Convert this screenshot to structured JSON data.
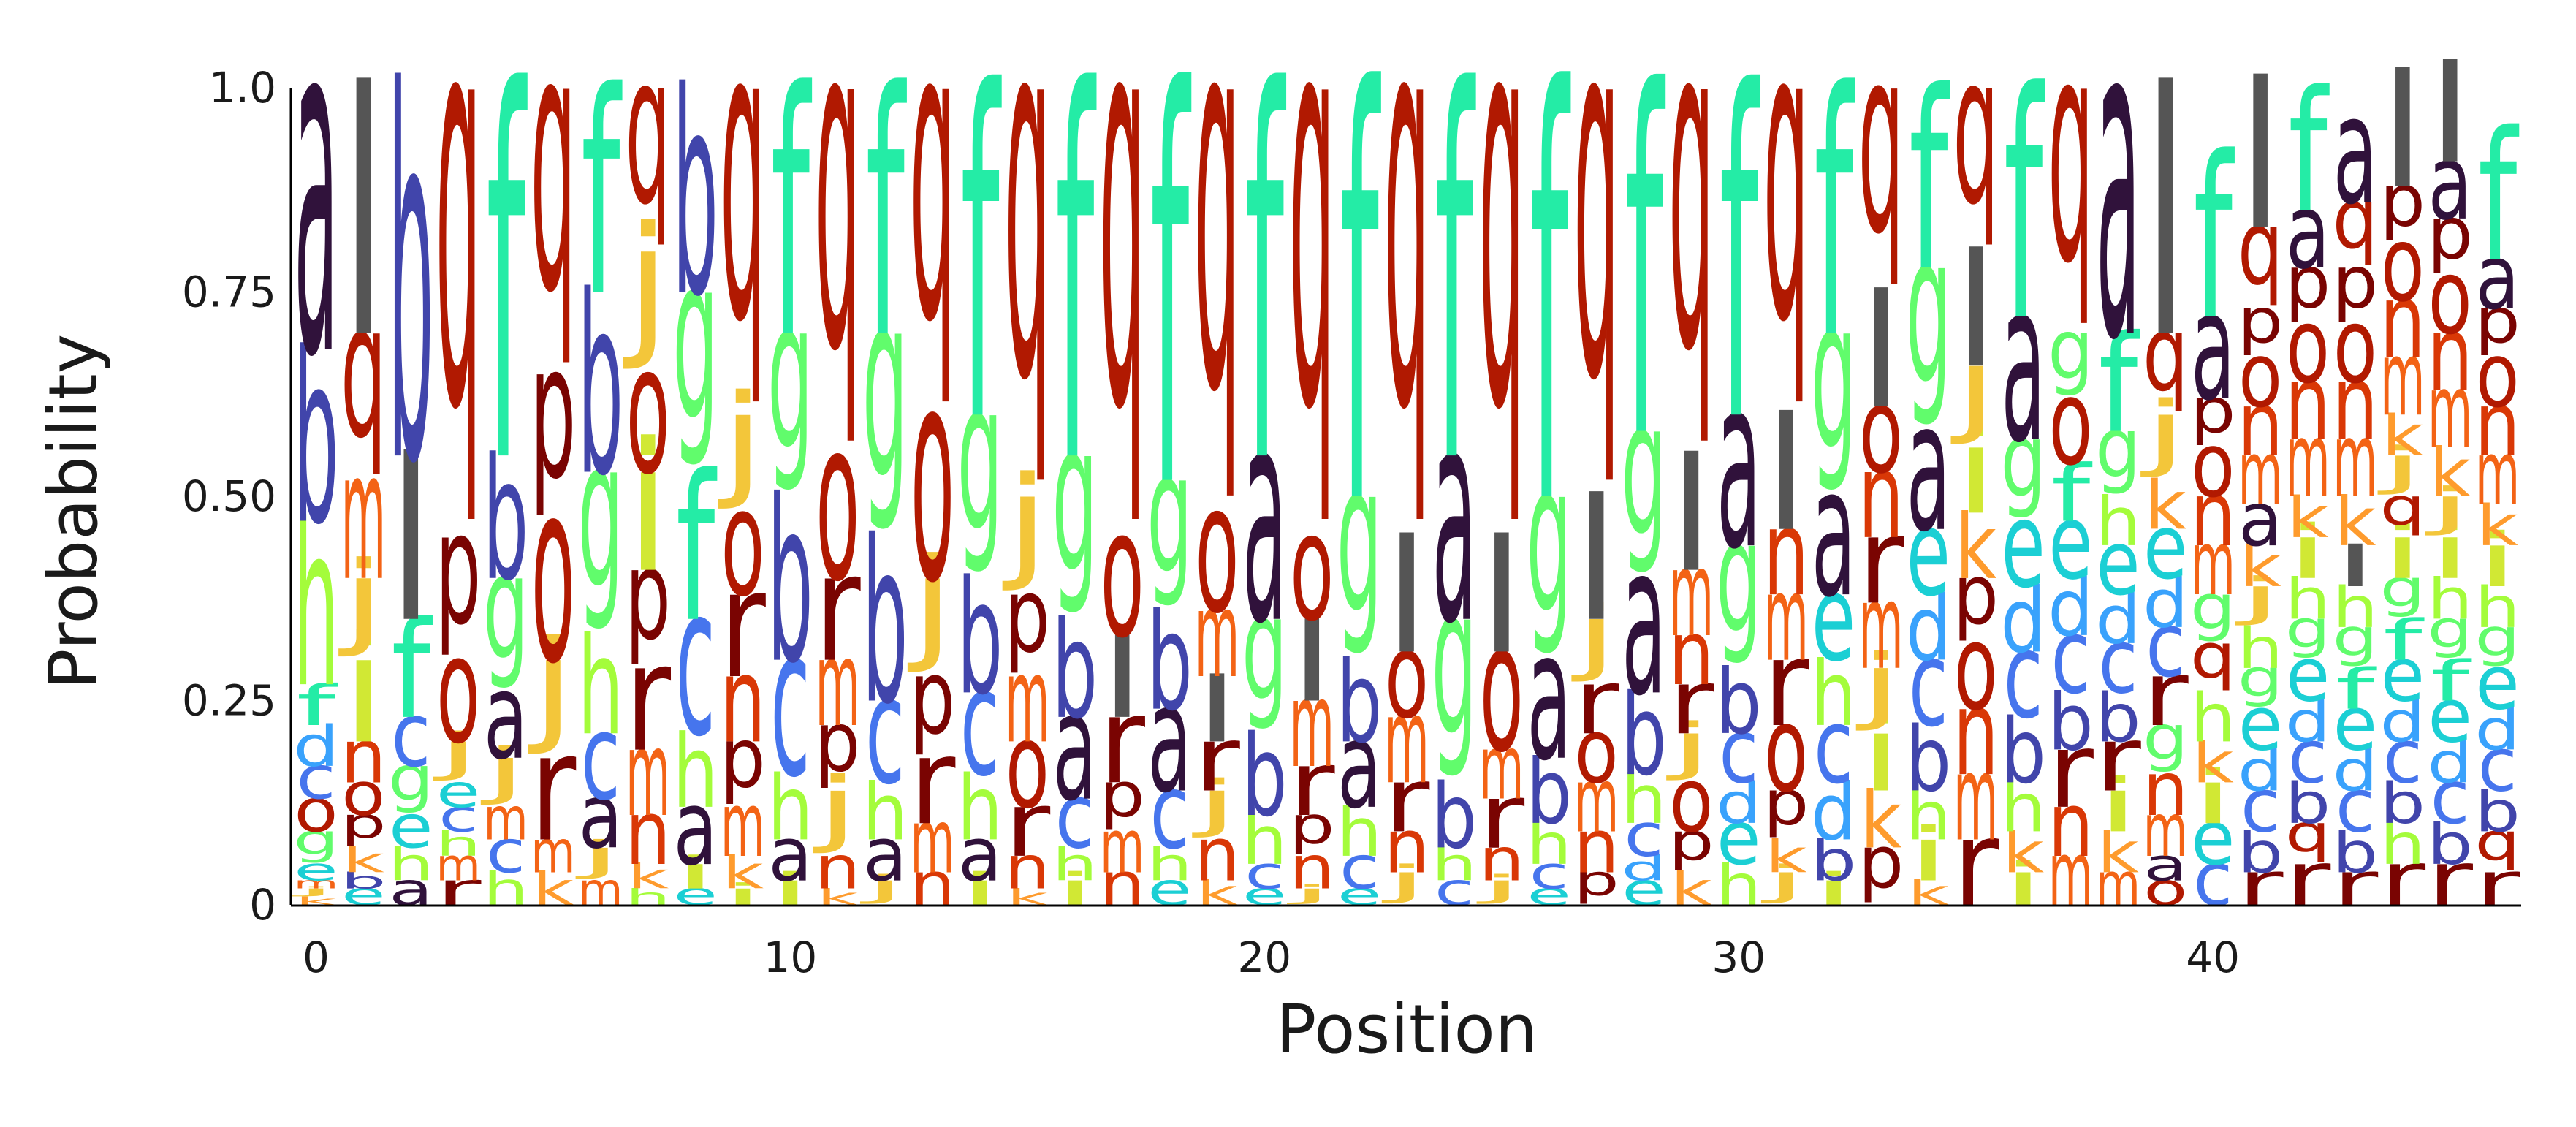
{
  "chart_data": {
    "type": "sequence_logo",
    "xlabel": "Position",
    "ylabel": "Probability",
    "xlim": [
      -0.5,
      46.5
    ],
    "ylim": [
      0,
      1
    ],
    "xticks": [
      0,
      10,
      20,
      30,
      40
    ],
    "yticks": [
      {
        "value": 0,
        "label": "0"
      },
      {
        "value": 0.25,
        "label": "0.25"
      },
      {
        "value": 0.5,
        "label": "0.50"
      },
      {
        "value": 0.75,
        "label": "0.75"
      },
      {
        "value": 1.0,
        "label": "1.0"
      }
    ],
    "colors": {
      "a": "#30123b",
      "b": "#4145ab",
      "c": "#4675ed",
      "d": "#39a2fc",
      "e": "#1bcfd4",
      "f": "#24eca6",
      "g": "#61fc6c",
      "h": "#a4fc3b",
      "i": "#d1e834",
      "j": "#f3c63a",
      "k": "#fe9b2d",
      "m": "#f36315",
      "n": "#d93806",
      "o": "#b11901",
      "p": "#7a0402",
      "q": "#b11901",
      "r": "#7a0402"
    },
    "positions": [
      {
        "pos": 0,
        "letters": {
          "a": 0.32,
          "h": 0.2,
          "b": 0.21,
          "d": 0.05,
          "f": 0.05,
          "g": 0.04,
          "o": 0.04,
          "c": 0.04,
          "e": 0.02,
          "k": 0.01,
          "j": 0.01,
          "m": 0.01
        }
      },
      {
        "pos": 1,
        "letters": {
          "q": 0.18,
          "i": 0.1,
          "l": 0.3,
          "m": 0.12,
          "j": 0.1,
          "n": 0.05,
          "p": 0.04,
          "o": 0.04,
          "k": 0.03,
          "e": 0.02,
          "b": 0.02
        }
      },
      {
        "pos": 2,
        "letters": {
          "b": 0.45,
          "l": 0.2,
          "f": 0.12,
          "g": 0.06,
          "c": 0.06,
          "h": 0.04,
          "e": 0.04,
          "a": 0.03
        }
      },
      {
        "pos": 3,
        "letters": {
          "q": 0.55,
          "p": 0.15,
          "o": 0.1,
          "j": 0.05,
          "r": 0.03,
          "m": 0.03,
          "h": 0.03,
          "c": 0.03,
          "e": 0.03
        }
      },
      {
        "pos": 4,
        "letters": {
          "f": 0.45,
          "b": 0.15,
          "g": 0.14,
          "a": 0.08,
          "j": 0.06,
          "h": 0.04,
          "c": 0.04,
          "m": 0.04
        }
      },
      {
        "pos": 5,
        "letters": {
          "q": 0.35,
          "p": 0.18,
          "o": 0.17,
          "j": 0.12,
          "r": 0.1,
          "k": 0.04,
          "m": 0.04
        }
      },
      {
        "pos": 6,
        "letters": {
          "f": 0.25,
          "g": 0.2,
          "b": 0.22,
          "h": 0.12,
          "c": 0.08,
          "a": 0.06,
          "j": 0.04,
          "m": 0.03
        }
      },
      {
        "pos": 7,
        "letters": {
          "q": 0.2,
          "p": 0.12,
          "j": 0.15,
          "i": 0.12,
          "o": 0.12,
          "r": 0.1,
          "m": 0.08,
          "n": 0.06,
          "k": 0.03,
          "h": 0.02
        }
      },
      {
        "pos": 8,
        "letters": {
          "b": 0.25,
          "g": 0.22,
          "f": 0.18,
          "c": 0.14,
          "h": 0.09,
          "a": 0.07,
          "i": 0.03,
          "e": 0.02
        }
      },
      {
        "pos": 9,
        "letters": {
          "q": 0.4,
          "j": 0.12,
          "p": 0.08,
          "r": 0.1,
          "o": 0.1,
          "n": 0.08,
          "m": 0.06,
          "k": 0.04,
          "i": 0.02
        }
      },
      {
        "pos": 10,
        "letters": {
          "f": 0.3,
          "b": 0.2,
          "g": 0.2,
          "c": 0.14,
          "h": 0.08,
          "a": 0.05,
          "i": 0.03
        }
      },
      {
        "pos": 11,
        "letters": {
          "q": 0.45,
          "o": 0.15,
          "j": 0.08,
          "p": 0.08,
          "r": 0.1,
          "m": 0.08,
          "n": 0.04,
          "k": 0.02
        }
      },
      {
        "pos": 12,
        "letters": {
          "f": 0.3,
          "g": 0.25,
          "b": 0.2,
          "c": 0.1,
          "h": 0.07,
          "a": 0.05,
          "j": 0.03
        }
      },
      {
        "pos": 13,
        "letters": {
          "q": 0.4,
          "o": 0.2,
          "j": 0.12,
          "p": 0.1,
          "r": 0.08,
          "m": 0.06,
          "n": 0.04
        }
      },
      {
        "pos": 14,
        "letters": {
          "f": 0.4,
          "g": 0.2,
          "b": 0.14,
          "c": 0.1,
          "h": 0.08,
          "a": 0.05,
          "i": 0.03
        }
      },
      {
        "pos": 15,
        "letters": {
          "q": 0.5,
          "j": 0.12,
          "p": 0.1,
          "o": 0.08,
          "m": 0.08,
          "r": 0.06,
          "n": 0.04,
          "k": 0.02
        }
      },
      {
        "pos": 16,
        "letters": {
          "f": 0.45,
          "g": 0.2,
          "b": 0.12,
          "a": 0.1,
          "c": 0.06,
          "h": 0.04,
          "i": 0.03
        }
      },
      {
        "pos": 17,
        "letters": {
          "q": 0.55,
          "l": 0.1,
          "o": 0.12,
          "r": 0.08,
          "p": 0.06,
          "m": 0.05,
          "n": 0.04
        }
      },
      {
        "pos": 18,
        "letters": {
          "f": 0.48,
          "g": 0.16,
          "b": 0.12,
          "a": 0.1,
          "c": 0.07,
          "h": 0.04,
          "e": 0.03
        }
      },
      {
        "pos": 19,
        "letters": {
          "q": 0.52,
          "l": 0.08,
          "o": 0.12,
          "j": 0.06,
          "m": 0.08,
          "r": 0.06,
          "n": 0.05,
          "k": 0.03
        }
      },
      {
        "pos": 20,
        "letters": {
          "f": 0.45,
          "g": 0.14,
          "a": 0.2,
          "b": 0.1,
          "h": 0.06,
          "c": 0.03,
          "e": 0.02
        }
      },
      {
        "pos": 21,
        "letters": {
          "q": 0.55,
          "l": 0.1,
          "o": 0.1,
          "m": 0.08,
          "r": 0.06,
          "p": 0.05,
          "n": 0.04,
          "j": 0.02
        }
      },
      {
        "pos": 22,
        "letters": {
          "f": 0.5,
          "g": 0.2,
          "b": 0.1,
          "a": 0.08,
          "h": 0.06,
          "c": 0.04,
          "e": 0.02
        }
      },
      {
        "pos": 23,
        "letters": {
          "q": 0.55,
          "l": 0.14,
          "m": 0.08,
          "o": 0.08,
          "r": 0.06,
          "n": 0.05,
          "j": 0.04
        }
      },
      {
        "pos": 24,
        "letters": {
          "f": 0.45,
          "g": 0.2,
          "a": 0.2,
          "b": 0.08,
          "h": 0.04,
          "c": 0.03
        }
      },
      {
        "pos": 25,
        "letters": {
          "q": 0.55,
          "l": 0.14,
          "o": 0.12,
          "r": 0.06,
          "m": 0.06,
          "n": 0.04,
          "j": 0.03
        }
      },
      {
        "pos": 26,
        "letters": {
          "f": 0.5,
          "g": 0.2,
          "a": 0.12,
          "b": 0.08,
          "h": 0.05,
          "c": 0.03,
          "e": 0.02
        }
      },
      {
        "pos": 27,
        "letters": {
          "q": 0.5,
          "l": 0.15,
          "j": 0.08,
          "m": 0.06,
          "o": 0.06,
          "r": 0.06,
          "n": 0.05,
          "p": 0.04
        }
      },
      {
        "pos": 28,
        "letters": {
          "f": 0.42,
          "g": 0.18,
          "a": 0.14,
          "b": 0.1,
          "h": 0.06,
          "c": 0.04,
          "e": 0.03,
          "d": 0.03
        }
      },
      {
        "pos": 29,
        "letters": {
          "q": 0.45,
          "l": 0.14,
          "m": 0.08,
          "o": 0.06,
          "j": 0.06,
          "r": 0.06,
          "n": 0.06,
          "p": 0.05,
          "k": 0.04
        }
      },
      {
        "pos": 30,
        "letters": {
          "f": 0.4,
          "a": 0.16,
          "g": 0.15,
          "b": 0.08,
          "c": 0.06,
          "h": 0.05,
          "e": 0.05,
          "d": 0.05
        }
      },
      {
        "pos": 31,
        "letters": {
          "q": 0.4,
          "l": 0.14,
          "o": 0.08,
          "r": 0.08,
          "m": 0.08,
          "n": 0.08,
          "p": 0.06,
          "j": 0.04,
          "k": 0.04
        }
      },
      {
        "pos": 32,
        "letters": {
          "f": 0.3,
          "g": 0.2,
          "a": 0.12,
          "h": 0.08,
          "e": 0.08,
          "d": 0.07,
          "c": 0.07,
          "b": 0.05,
          "i": 0.03
        }
      },
      {
        "pos": 33,
        "letters": {
          "q": 0.25,
          "l": 0.14,
          "j": 0.08,
          "m": 0.08,
          "r": 0.08,
          "n": 0.08,
          "o": 0.08,
          "p": 0.07,
          "k": 0.07,
          "i": 0.07
        }
      },
      {
        "pos": 34,
        "letters": {
          "f": 0.22,
          "g": 0.2,
          "a": 0.12,
          "b": 0.08,
          "c": 0.08,
          "d": 0.08,
          "e": 0.08,
          "h": 0.06,
          "i": 0.05,
          "k": 0.03
        }
      },
      {
        "pos": 35,
        "letters": {
          "q": 0.2,
          "l": 0.14,
          "j": 0.1,
          "r": 0.08,
          "m": 0.08,
          "n": 0.08,
          "o": 0.08,
          "p": 0.08,
          "k": 0.08,
          "i": 0.08
        }
      },
      {
        "pos": 36,
        "letters": {
          "f": 0.28,
          "a": 0.15,
          "g": 0.1,
          "b": 0.08,
          "c": 0.08,
          "d": 0.08,
          "e": 0.08,
          "h": 0.06,
          "k": 0.05,
          "i": 0.04
        }
      },
      {
        "pos": 37,
        "letters": {
          "q": 0.3,
          "o": 0.08,
          "g": 0.08,
          "r": 0.07,
          "b": 0.07,
          "c": 0.07,
          "d": 0.07,
          "e": 0.07,
          "f": 0.07,
          "m": 0.06,
          "n": 0.06
        }
      },
      {
        "pos": 38,
        "letters": {
          "a": 0.3,
          "f": 0.12,
          "g": 0.08,
          "r": 0.06,
          "b": 0.06,
          "c": 0.06,
          "d": 0.06,
          "e": 0.06,
          "h": 0.06,
          "k": 0.05,
          "i": 0.05,
          "m": 0.04
        }
      },
      {
        "pos": 39,
        "letters": {
          "l": 0.3,
          "j": 0.08,
          "q": 0.1,
          "g": 0.06,
          "r": 0.06,
          "c": 0.06,
          "d": 0.06,
          "e": 0.06,
          "k": 0.06,
          "m": 0.05,
          "n": 0.05,
          "o": 0.03,
          "a": 0.03
        }
      },
      {
        "pos": 40,
        "letters": {
          "f": 0.2,
          "a": 0.1,
          "h": 0.06,
          "q": 0.06,
          "g": 0.06,
          "c": 0.05,
          "e": 0.05,
          "i": 0.05,
          "k": 0.05,
          "m": 0.06,
          "n": 0.06,
          "o": 0.06,
          "p": 0.06,
          "a2": 0.0
        }
      },
      {
        "pos": 41,
        "letters": {
          "l": 0.18,
          "q": 0.1,
          "r": 0.04,
          "b": 0.05,
          "c": 0.05,
          "d": 0.05,
          "e": 0.05,
          "g": 0.05,
          "h": 0.05,
          "j": 0.05,
          "k": 0.05,
          "m": 0.06,
          "n": 0.06,
          "o": 0.06,
          "p": 0.06,
          "a": 0.05
        }
      },
      {
        "pos": 42,
        "letters": {
          "f": 0.15,
          "r": 0.05,
          "q": 0.05,
          "b": 0.05,
          "c": 0.05,
          "d": 0.05,
          "e": 0.05,
          "g": 0.05,
          "h": 0.05,
          "i": 0.05,
          "k": 0.05,
          "m": 0.07,
          "n": 0.07,
          "o": 0.07,
          "p": 0.07,
          "a": 0.07
        }
      },
      {
        "pos": 43,
        "letters": {
          "q": 0.08,
          "a": 0.1,
          "r": 0.04,
          "b": 0.05,
          "c": 0.05,
          "d": 0.05,
          "e": 0.05,
          "f": 0.05,
          "g": 0.05,
          "h": 0.05,
          "r2": 0.0,
          "k": 0.06,
          "l": 0.05,
          "m": 0.07,
          "n": 0.07,
          "o": 0.07,
          "p": 0.07
        }
      },
      {
        "pos": 44,
        "letters": {
          "l": 0.14,
          "r": 0.05,
          "h": 0.05,
          "b": 0.05,
          "c": 0.05,
          "d": 0.05,
          "e": 0.05,
          "f": 0.05,
          "g": 0.05,
          "i": 0.05,
          "q": 0.05,
          "j": 0.05,
          "k": 0.05,
          "m": 0.07,
          "n": 0.07,
          "o": 0.07,
          "p": 0.07
        }
      },
      {
        "pos": 45,
        "letters": {
          "l": 0.12,
          "r": 0.05,
          "b": 0.05,
          "c": 0.05,
          "d": 0.05,
          "e": 0.05,
          "f": 0.05,
          "g": 0.05,
          "h": 0.05,
          "i": 0.05,
          "j": 0.05,
          "k": 0.06,
          "m": 0.07,
          "n": 0.07,
          "o": 0.07,
          "p": 0.07,
          "a": 0.07
        }
      },
      {
        "pos": 46,
        "letters": {
          "f": 0.16,
          "q": 0.05,
          "b": 0.05,
          "c": 0.05,
          "d": 0.05,
          "e": 0.05,
          "g": 0.05,
          "h": 0.05,
          "i": 0.05,
          "k": 0.05,
          "m": 0.06,
          "n": 0.06,
          "o": 0.06,
          "p": 0.06,
          "a": 0.06,
          "r": 0.04
        }
      }
    ]
  }
}
